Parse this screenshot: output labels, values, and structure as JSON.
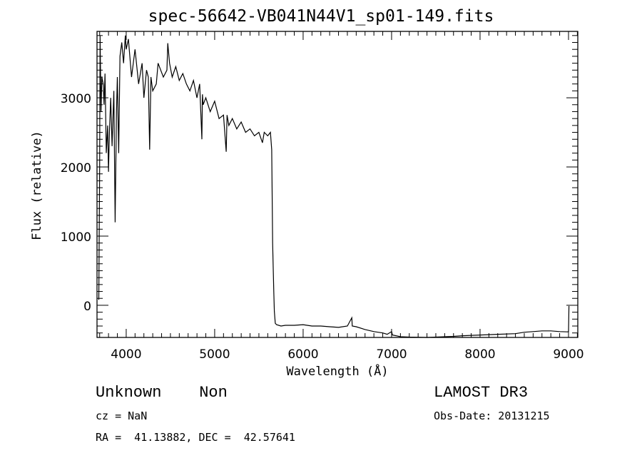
{
  "chart_data": {
    "type": "line",
    "title": "spec-56642-VB041N44V1_sp01-149.fits",
    "xlabel": "Wavelength (Å)",
    "ylabel": "Flux (relative)",
    "xlim": [
      3670,
      9105
    ],
    "ylim": [
      -465,
      3960
    ],
    "xticks": [
      4000,
      5000,
      6000,
      7000,
      8000,
      9000
    ],
    "yticks": [
      0,
      1000,
      2000,
      3000
    ],
    "grid": false,
    "series": [
      {
        "name": "spectrum",
        "x": [
          3690,
          3700,
          3705,
          3715,
          3725,
          3740,
          3750,
          3760,
          3775,
          3790,
          3800,
          3810,
          3825,
          3840,
          3860,
          3875,
          3890,
          3900,
          3915,
          3930,
          3950,
          3970,
          3990,
          4000,
          4025,
          4060,
          4100,
          4140,
          4180,
          4200,
          4230,
          4250,
          4265,
          4280,
          4300,
          4340,
          4360,
          4390,
          4420,
          4460,
          4470,
          4490,
          4520,
          4560,
          4600,
          4640,
          4680,
          4720,
          4760,
          4800,
          4830,
          4855,
          4862,
          4870,
          4900,
          4950,
          5000,
          5050,
          5100,
          5130,
          5140,
          5160,
          5200,
          5250,
          5300,
          5350,
          5400,
          5450,
          5500,
          5540,
          5560,
          5600,
          5630,
          5645,
          5655,
          5660,
          5668,
          5675,
          5685,
          5700,
          5750,
          5800,
          5900,
          6000,
          6100,
          6200,
          6300,
          6400,
          6500,
          6550,
          6555,
          6600,
          6700,
          6800,
          6900,
          6950,
          7000,
          7010,
          7050,
          7100,
          7200,
          7300,
          7400,
          7500,
          7600,
          7700,
          7800,
          7900,
          8000,
          8200,
          8400,
          8500,
          8600,
          8700,
          8800,
          8900,
          8990,
          9000,
          9005
        ],
        "y": [
          80,
          2000,
          3900,
          2800,
          3300,
          3200,
          2900,
          3350,
          2200,
          2600,
          1930,
          2500,
          3000,
          2300,
          3100,
          1200,
          2800,
          3300,
          2200,
          3600,
          3800,
          3500,
          3900,
          3700,
          3850,
          3300,
          3700,
          3200,
          3500,
          3000,
          3400,
          3300,
          2250,
          3300,
          3100,
          3200,
          3500,
          3400,
          3300,
          3400,
          3790,
          3500,
          3300,
          3450,
          3250,
          3350,
          3200,
          3100,
          3250,
          3000,
          3200,
          2400,
          3050,
          2900,
          3000,
          2800,
          2950,
          2700,
          2750,
          2220,
          2750,
          2600,
          2700,
          2550,
          2650,
          2500,
          2550,
          2450,
          2500,
          2350,
          2500,
          2450,
          2500,
          2250,
          900,
          630,
          200,
          -90,
          -260,
          -280,
          -300,
          -290,
          -290,
          -280,
          -300,
          -300,
          -310,
          -320,
          -300,
          -180,
          -300,
          -310,
          -350,
          -380,
          -400,
          -420,
          -380,
          -430,
          -440,
          -455,
          -460,
          -462,
          -465,
          -460,
          -455,
          -450,
          -440,
          -435,
          -430,
          -420,
          -410,
          -390,
          -380,
          -370,
          -370,
          -380,
          -385,
          -380,
          -10
        ]
      }
    ]
  },
  "footer": {
    "object": "Unknown    Non",
    "survey": "LAMOST DR3",
    "cz": "cz = NaN",
    "obs_date": "Obs-Date: 20131215",
    "radec": "RA =  41.13882, DEC =  42.57641"
  }
}
